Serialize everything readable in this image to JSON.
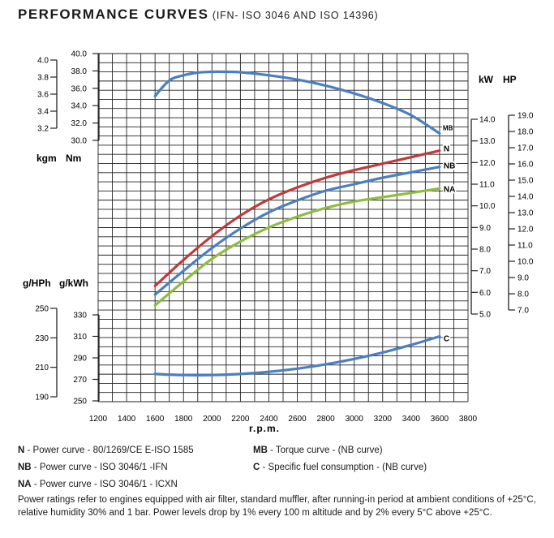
{
  "title": {
    "main": "PERFORMANCE CURVES",
    "sub": "(IFN- ISO 3046 AND ISO 14396)"
  },
  "legend": {
    "items": [
      {
        "code": "N",
        "text": " - Power curve - 80/1269/CE E-ISO 1585"
      },
      {
        "code": "MB",
        "text": " - Torque curve - (NB curve)"
      },
      {
        "code": "NB",
        "text": " - Power curve - ISO 3046/1 -IFN"
      },
      {
        "code": "C",
        "text": " -   Specific fuel consumption - (NB curve)"
      },
      {
        "code": "NA",
        "text": " - Power curve - ISO 3046/1 - ICXN"
      }
    ]
  },
  "note": "Power ratings refer to engines equipped with air filter, standard muffler, after running-in period at ambient conditions of +25°C, relative humidity 30% and 1 bar. Power levels drop by 1% every 100 m altitude and by 2% every 5°C above +25°C.",
  "chart_data": {
    "type": "line",
    "xlabel": "r.p.m.",
    "x_ticks": [
      1200,
      1400,
      1600,
      1800,
      2000,
      2200,
      2400,
      2600,
      2800,
      3000,
      3200,
      3400,
      3600,
      3800
    ],
    "xlim": [
      1200,
      3800
    ],
    "axes": {
      "torque_kgm": {
        "ticks": [
          "3.2",
          "3.4",
          "3.6",
          "3.8",
          "4.0"
        ]
      },
      "torque_nm": {
        "label_left": "kgm",
        "label_right": "Nm",
        "ticks": [
          "30.0",
          "32.0",
          "34.0",
          "36.0",
          "38.0",
          "40.0"
        ],
        "ylim": [
          30,
          40
        ]
      },
      "power_kw": {
        "label": "kW",
        "ticks": [
          "5.0",
          "6.0",
          "7.0",
          "8.0",
          "9.0",
          "10.0",
          "11.0",
          "12.0",
          "13.0",
          "14.0"
        ],
        "ylim": [
          5,
          14
        ]
      },
      "power_hp": {
        "label": "HP",
        "ticks": [
          "7.0",
          "8.0",
          "9.0",
          "10.0",
          "11.0",
          "12.0",
          "13.0",
          "14.0",
          "15.0",
          "16.0",
          "17.0",
          "18.0",
          "19.0"
        ]
      },
      "fuel_ghph": {
        "label": "g/HPh",
        "ticks": [
          "190",
          "210",
          "230",
          "250"
        ]
      },
      "fuel_gkwh": {
        "label": "g/kWh",
        "ticks": [
          "250",
          "270",
          "290",
          "310",
          "330"
        ],
        "ylim": [
          250,
          330
        ]
      }
    },
    "series": [
      {
        "name": "MB",
        "axis": "torque_nm",
        "color": "#4a7fc1",
        "x": [
          1600,
          1700,
          1800,
          1900,
          2000,
          2100,
          2200,
          2400,
          2600,
          2800,
          3000,
          3200,
          3400,
          3600
        ],
        "y": [
          35.1,
          36.9,
          37.5,
          37.8,
          37.9,
          37.9,
          37.85,
          37.5,
          37.0,
          36.3,
          35.4,
          34.3,
          32.9,
          30.8
        ]
      },
      {
        "name": "N",
        "axis": "power_kw",
        "color": "#c0393b",
        "x": [
          1600,
          1800,
          2000,
          2200,
          2400,
          2600,
          2800,
          3000,
          3200,
          3400,
          3600
        ],
        "y": [
          6.3,
          7.5,
          8.6,
          9.55,
          10.3,
          10.85,
          11.3,
          11.65,
          11.95,
          12.25,
          12.55
        ]
      },
      {
        "name": "NB",
        "axis": "power_kw",
        "color": "#4a7fc1",
        "x": [
          1600,
          1800,
          2000,
          2200,
          2400,
          2600,
          2800,
          3000,
          3200,
          3400,
          3600
        ],
        "y": [
          5.9,
          7.0,
          8.05,
          8.95,
          9.7,
          10.25,
          10.7,
          11.0,
          11.3,
          11.55,
          11.8
        ]
      },
      {
        "name": "NA",
        "axis": "power_kw",
        "color": "#8fbc3f",
        "x": [
          1600,
          1800,
          2000,
          2200,
          2400,
          2600,
          2800,
          3000,
          3200,
          3400,
          3600
        ],
        "y": [
          5.4,
          6.5,
          7.55,
          8.35,
          9.0,
          9.5,
          9.9,
          10.2,
          10.4,
          10.6,
          10.8
        ]
      },
      {
        "name": "C",
        "axis": "fuel_gkwh",
        "color": "#4a7fc1",
        "x": [
          1600,
          1800,
          2000,
          2200,
          2400,
          2600,
          2800,
          3000,
          3200,
          3400,
          3600
        ],
        "y": [
          275,
          274,
          274,
          275,
          277,
          280,
          284,
          289,
          295,
          302,
          310
        ]
      }
    ]
  }
}
